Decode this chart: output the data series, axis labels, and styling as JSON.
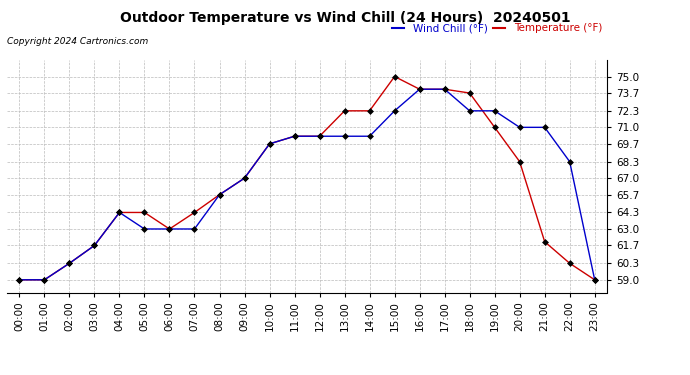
{
  "title": "Outdoor Temperature vs Wind Chill (24 Hours)  20240501",
  "copyright": "Copyright 2024 Cartronics.com",
  "legend_wind_chill": "Wind Chill (°F)",
  "legend_temperature": "Temperature (°F)",
  "x_labels": [
    "00:00",
    "01:00",
    "02:00",
    "03:00",
    "04:00",
    "05:00",
    "06:00",
    "07:00",
    "08:00",
    "09:00",
    "10:00",
    "11:00",
    "12:00",
    "13:00",
    "14:00",
    "15:00",
    "16:00",
    "17:00",
    "18:00",
    "19:00",
    "20:00",
    "21:00",
    "22:00",
    "23:00"
  ],
  "temperature": [
    59.0,
    59.0,
    60.3,
    61.7,
    64.3,
    64.3,
    63.0,
    64.3,
    65.7,
    67.0,
    69.7,
    70.3,
    70.3,
    72.3,
    72.3,
    75.0,
    74.0,
    74.0,
    73.7,
    71.0,
    68.3,
    62.0,
    60.3,
    59.0
  ],
  "wind_chill": [
    59.0,
    59.0,
    60.3,
    61.7,
    64.3,
    63.0,
    63.0,
    63.0,
    65.7,
    67.0,
    69.7,
    70.3,
    70.3,
    70.3,
    70.3,
    72.3,
    74.0,
    74.0,
    72.3,
    72.3,
    71.0,
    71.0,
    68.3,
    59.0
  ],
  "temp_color": "#cc0000",
  "wind_chill_color": "#0000cc",
  "ylim_min": 58.0,
  "ylim_max": 76.3,
  "yticks": [
    59.0,
    60.3,
    61.7,
    63.0,
    64.3,
    65.7,
    67.0,
    68.3,
    69.7,
    71.0,
    72.3,
    73.7,
    75.0
  ],
  "background_color": "#ffffff",
  "grid_color": "#bbbbbb",
  "title_fontsize": 10,
  "axis_fontsize": 7.5,
  "marker_size": 3,
  "line_width": 1.0
}
